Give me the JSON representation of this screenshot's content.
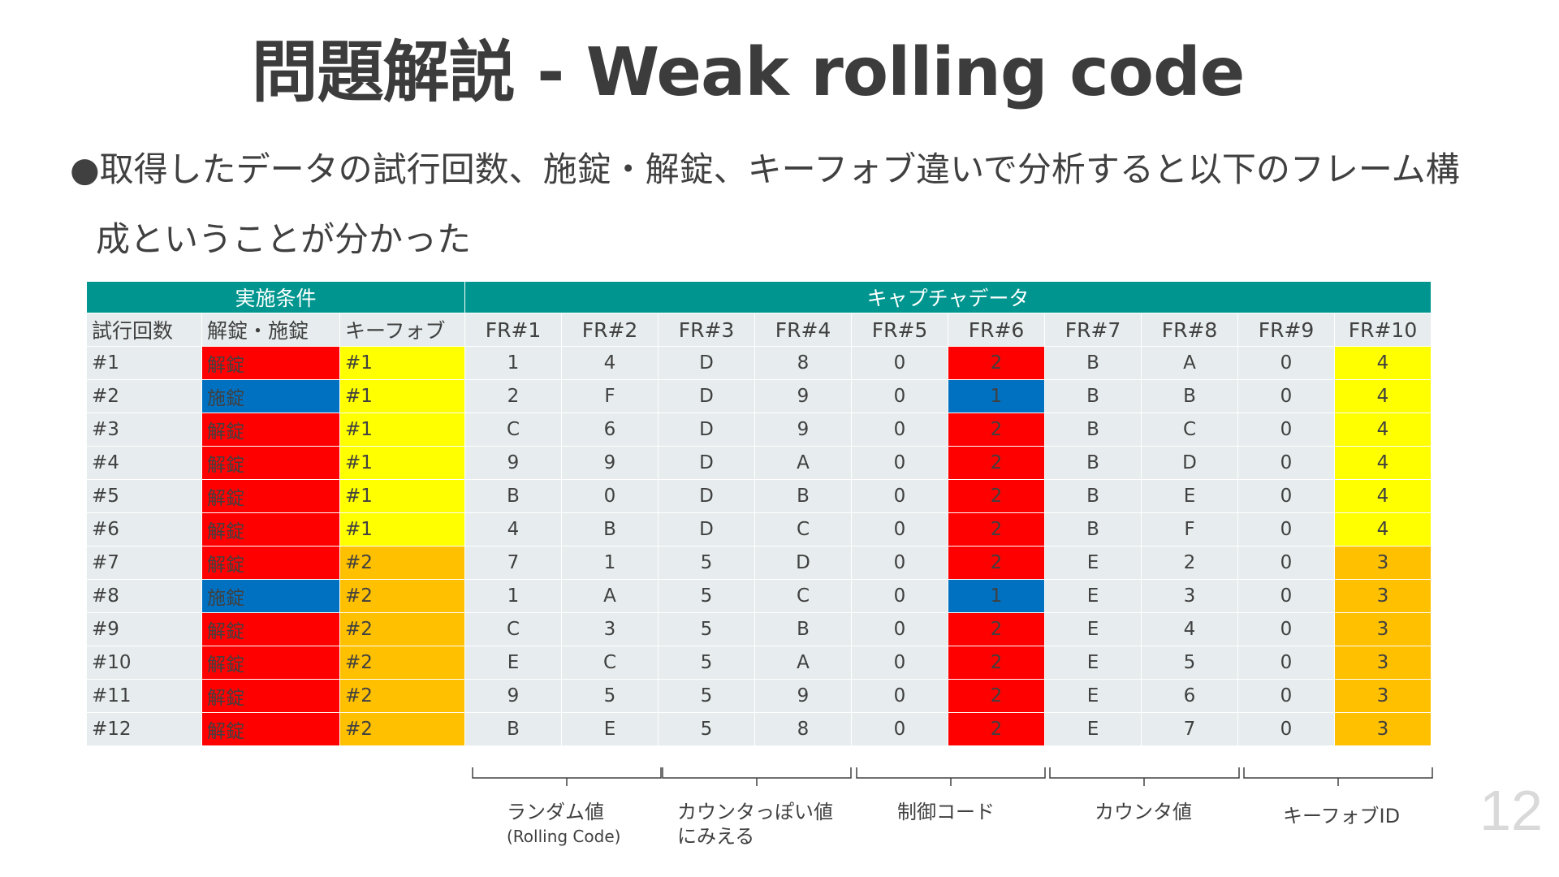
{
  "slide": {
    "title": "問題解説 - Weak rolling code",
    "bullet_marker": "●",
    "bullet_line1": "取得したデータの試行回数、施錠・解錠、キーフォブ違いで分析すると以下のフレーム構",
    "bullet_line2": "成ということが分かった",
    "page_number": "12"
  },
  "colors": {
    "teal_header": "#00968f",
    "cell_gray": "#e7edee",
    "unlock_red": "#ff0000",
    "lock_blue": "#0070c0",
    "fob1_yellow": "#ffff00",
    "fob2_orange": "#ffc000"
  },
  "table": {
    "group_conditions": "実施条件",
    "group_capture": "キャプチャデータ",
    "headers": [
      "試行回数",
      "解錠・施錠",
      "キーフォブ",
      "FR#1",
      "FR#2",
      "FR#3",
      "FR#4",
      "FR#5",
      "FR#6",
      "FR#7",
      "FR#8",
      "FR#9",
      "FR#10"
    ],
    "rows": [
      [
        "#1",
        "解錠",
        "#1",
        "1",
        "4",
        "D",
        "8",
        "0",
        "2",
        "B",
        "A",
        "0",
        "4"
      ],
      [
        "#2",
        "施錠",
        "#1",
        "2",
        "F",
        "D",
        "9",
        "0",
        "1",
        "B",
        "B",
        "0",
        "4"
      ],
      [
        "#3",
        "解錠",
        "#1",
        "C",
        "6",
        "D",
        "9",
        "0",
        "2",
        "B",
        "C",
        "0",
        "4"
      ],
      [
        "#4",
        "解錠",
        "#1",
        "9",
        "9",
        "D",
        "A",
        "0",
        "2",
        "B",
        "D",
        "0",
        "4"
      ],
      [
        "#5",
        "解錠",
        "#1",
        "B",
        "0",
        "D",
        "B",
        "0",
        "2",
        "B",
        "E",
        "0",
        "4"
      ],
      [
        "#6",
        "解錠",
        "#1",
        "4",
        "B",
        "D",
        "C",
        "0",
        "2",
        "B",
        "F",
        "0",
        "4"
      ],
      [
        "#7",
        "解錠",
        "#2",
        "7",
        "1",
        "5",
        "D",
        "0",
        "2",
        "E",
        "2",
        "0",
        "3"
      ],
      [
        "#8",
        "施錠",
        "#2",
        "1",
        "A",
        "5",
        "C",
        "0",
        "1",
        "E",
        "3",
        "0",
        "3"
      ],
      [
        "#9",
        "解錠",
        "#2",
        "C",
        "3",
        "5",
        "B",
        "0",
        "2",
        "E",
        "4",
        "0",
        "3"
      ],
      [
        "#10",
        "解錠",
        "#2",
        "E",
        "C",
        "5",
        "A",
        "0",
        "2",
        "E",
        "5",
        "0",
        "3"
      ],
      [
        "#11",
        "解錠",
        "#2",
        "9",
        "5",
        "5",
        "9",
        "0",
        "2",
        "E",
        "6",
        "0",
        "3"
      ],
      [
        "#12",
        "解錠",
        "#2",
        "B",
        "E",
        "5",
        "8",
        "0",
        "2",
        "E",
        "7",
        "0",
        "3"
      ]
    ]
  },
  "annotations": {
    "random_line1": "ランダム値",
    "random_line2": "(Rolling Code)",
    "counter_like_line1": "カウンタっぽい値",
    "counter_like_line2": "にみえる",
    "control_code": "制御コード",
    "counter_value": "カウンタ値",
    "keyfob_id": "キーフォブID"
  }
}
